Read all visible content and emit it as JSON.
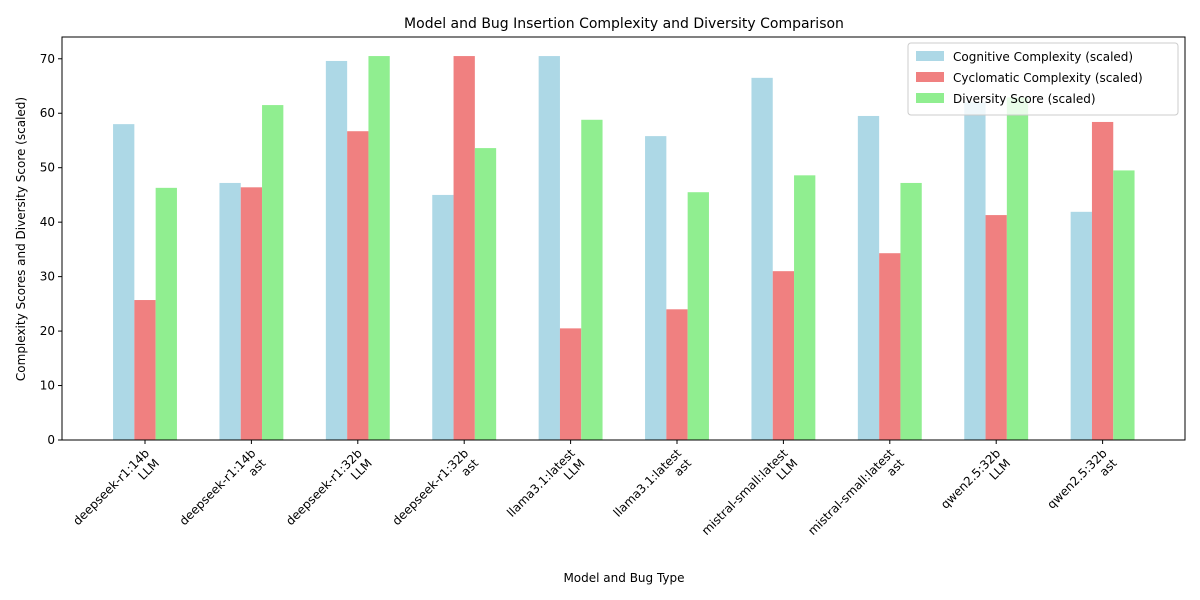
{
  "chart_data": {
    "type": "bar",
    "title": "Model and Bug Insertion Complexity and Diversity Comparison",
    "xlabel": "Model and Bug Type",
    "ylabel": "Complexity Scores and Diversity Score (scaled)",
    "ylim": [
      0,
      74
    ],
    "yticks": [
      0,
      10,
      20,
      30,
      40,
      50,
      60,
      70
    ],
    "categories": [
      [
        "deepseek-r1:14b",
        "LLM"
      ],
      [
        "deepseek-r1:14b",
        "ast"
      ],
      [
        "deepseek-r1:32b",
        "LLM"
      ],
      [
        "deepseek-r1:32b",
        "ast"
      ],
      [
        "llama3.1:latest",
        "LLM"
      ],
      [
        "llama3.1:latest",
        "ast"
      ],
      [
        "mistral-small:latest",
        "LLM"
      ],
      [
        "mistral-small:latest",
        "ast"
      ],
      [
        "qwen2.5:32b",
        "LLM"
      ],
      [
        "qwen2.5:32b",
        "ast"
      ]
    ],
    "series": [
      {
        "name": "Cognitive Complexity (scaled)",
        "color": "#add8e6",
        "values": [
          58.0,
          47.2,
          69.6,
          45.0,
          70.5,
          55.8,
          66.5,
          59.5,
          62.0,
          41.9
        ]
      },
      {
        "name": "Cyclomatic Complexity (scaled)",
        "color": "#f08080",
        "values": [
          25.7,
          46.4,
          56.7,
          70.5,
          20.5,
          24.0,
          31.0,
          34.3,
          41.3,
          58.4
        ]
      },
      {
        "name": "Diversity Score (scaled)",
        "color": "#90ee90",
        "values": [
          46.3,
          61.5,
          70.5,
          53.6,
          58.8,
          45.5,
          48.6,
          47.2,
          62.9,
          49.5
        ]
      }
    ],
    "legend_position": "top-right",
    "grid": false
  }
}
